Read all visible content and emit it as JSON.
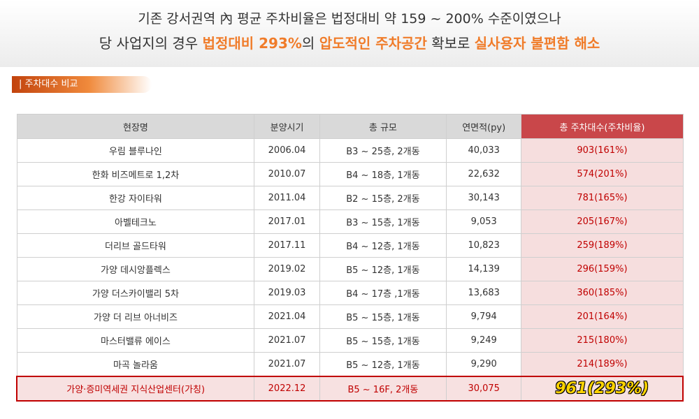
{
  "headline": {
    "line1": "기존 강서권역 內 평균 주차비율은 법정대비 약 159 ~ 200% 수준이였으나",
    "line2": [
      "당 사업지의 경우",
      "법정대비 293%",
      "의",
      "압도적인 주차공간",
      "확보로",
      "실사용자 불편함 해소"
    ]
  },
  "section": {
    "title": "주차대수 비교"
  },
  "table": {
    "header": [
      "현장명",
      "분양시기",
      "총 규모",
      "연면적(py)",
      "총 주차대수(주차비율)"
    ],
    "rows": [
      [
        "우림 블루나인",
        "2006.04",
        "B3 ~ 25층, 2개동",
        "40,033",
        "903(161%)"
      ],
      [
        "한화 비즈메트로 1,2차",
        "2010.07",
        "B4 ~ 18층, 1개동",
        "22,632",
        "574(201%)"
      ],
      [
        "한강 자이타워",
        "2011.04",
        "B2 ~ 15층, 2개동",
        "30,143",
        "781(165%)"
      ],
      [
        "아벨테크노",
        "2017.01",
        "B3 ~ 15층, 1개동",
        "9,053",
        "205(167%)"
      ],
      [
        "더리브 골드타워",
        "2017.11",
        "B4 ~ 12층, 1개동",
        "10,823",
        "259(189%)"
      ],
      [
        "가양 데시앙플렉스",
        "2019.02",
        "B5 ~ 12층, 1개동",
        "14,139",
        "296(159%)"
      ],
      [
        "가양 더스카이밸리 5차",
        "2019.03",
        "B4 ~ 17층 ,1개동",
        "13,683",
        "360(185%)"
      ],
      [
        "가양 더 리브 아너비즈",
        "2021.04",
        "B5 ~ 15층, 1개동",
        "9,794",
        "201(164%)"
      ],
      [
        "마스터밸류 에이스",
        "2021.07",
        "B5 ~ 15층, 1개동",
        "9,249",
        "215(180%)"
      ],
      [
        "마곡 놀라움",
        "2021.07",
        "B5 ~ 12층, 1개동",
        "9,290",
        "214(189%)"
      ],
      [
        "가양·증미역세권 지식산업센터(가칭)",
        "2022.12",
        "B5 ~ 16F, 2개동",
        "30,075",
        "961(293%)"
      ]
    ]
  }
}
